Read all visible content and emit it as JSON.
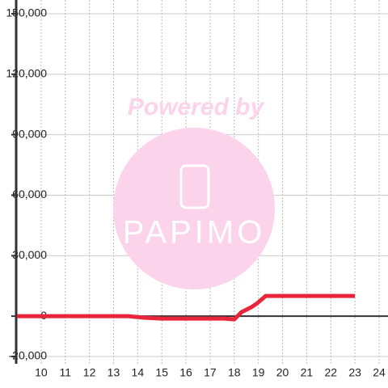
{
  "chart_data": {
    "type": "line",
    "watermark": {
      "top": "Powered by",
      "logo": "PAPIMO"
    },
    "x": [
      9,
      13.6,
      14.3,
      15,
      17.6,
      18,
      18.3,
      18.7,
      18.95,
      19.3,
      23
    ],
    "series": [
      {
        "color": "#e8253a",
        "values": [
          0,
          0,
          -800,
          -1200,
          -1200,
          -1600,
          2000,
          4400,
          6400,
          10000,
          10000
        ]
      }
    ],
    "xlim": [
      9,
      24
    ],
    "xticks": [
      10,
      11,
      12,
      13,
      14,
      15,
      16,
      17,
      18,
      19,
      20,
      21,
      22,
      23,
      24
    ],
    "ylim": [
      -20000,
      150000
    ],
    "yticks": [
      {
        "value": -20000,
        "label": "-20,000"
      },
      0,
      {
        "value": 30000,
        "label": "30,000"
      },
      {
        "value": 60000,
        "label": "60,000"
      },
      {
        "value": 90000,
        "label": "90,000"
      },
      {
        "value": 120000,
        "label": "120,000"
      },
      {
        "value": 150000,
        "label": "150,000"
      }
    ],
    "grid": true
  }
}
